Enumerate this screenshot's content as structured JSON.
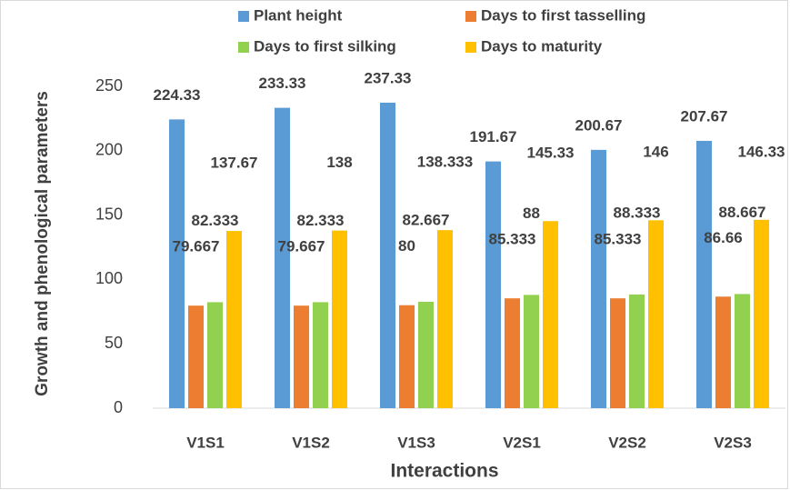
{
  "chart_data": {
    "type": "bar",
    "categories": [
      "V1S1",
      "V1S2",
      "V1S3",
      "V2S1",
      "V2S2",
      "V2S3"
    ],
    "series": [
      {
        "name": "Plant height",
        "color": "#5b9bd5",
        "values": [
          224.33,
          233.33,
          237.33,
          191.67,
          200.67,
          207.67
        ]
      },
      {
        "name": "Days to first tasselling",
        "color": "#ed7d31",
        "values": [
          79.667,
          79.667,
          80,
          85.333,
          85.333,
          86.66
        ]
      },
      {
        "name": "Days to first silking",
        "color": "#92d050",
        "values": [
          82.333,
          82.333,
          82.667,
          88,
          88.333,
          88.667
        ]
      },
      {
        "name": "Days to maturity",
        "color": "#ffc000",
        "values": [
          137.67,
          138,
          138.333,
          145.33,
          146,
          146.33
        ]
      }
    ],
    "xlabel": "Interactions",
    "ylabel": "Growth and phenological parameters",
    "ylim": [
      0,
      250
    ],
    "yticks": [
      0,
      50,
      100,
      150,
      200,
      250
    ],
    "grid": false,
    "legend": "top"
  }
}
